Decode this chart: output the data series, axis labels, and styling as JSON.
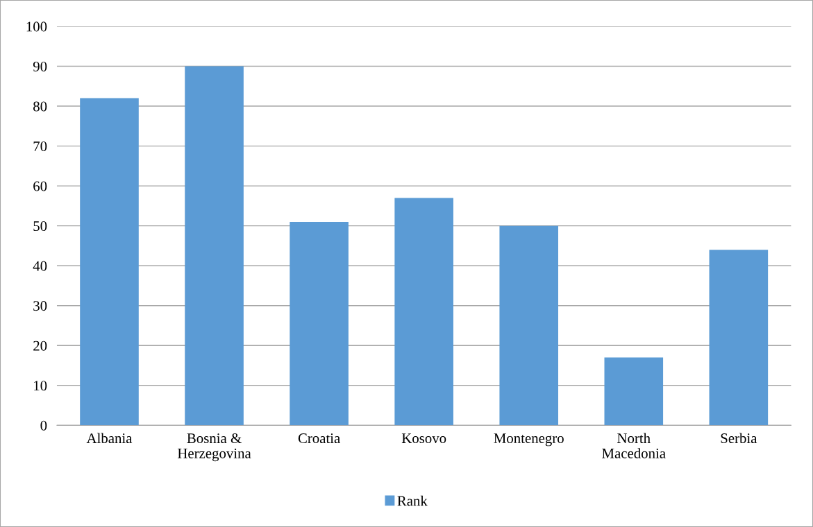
{
  "chart_data": {
    "type": "bar",
    "categories": [
      "Albania",
      "Bosnia &\nHerzegovina",
      "Croatia",
      "Kosovo",
      "Montenegro",
      "North\nMacedonia",
      "Serbia"
    ],
    "series": [
      {
        "name": "Rank",
        "color": "#5b9bd5",
        "values": [
          82,
          90,
          51,
          57,
          50,
          17,
          44
        ]
      }
    ],
    "ylim": [
      0,
      100
    ],
    "yticks": [
      0,
      10,
      20,
      30,
      40,
      50,
      60,
      70,
      80,
      90,
      100
    ],
    "grid": "y",
    "legend": "bottom"
  }
}
